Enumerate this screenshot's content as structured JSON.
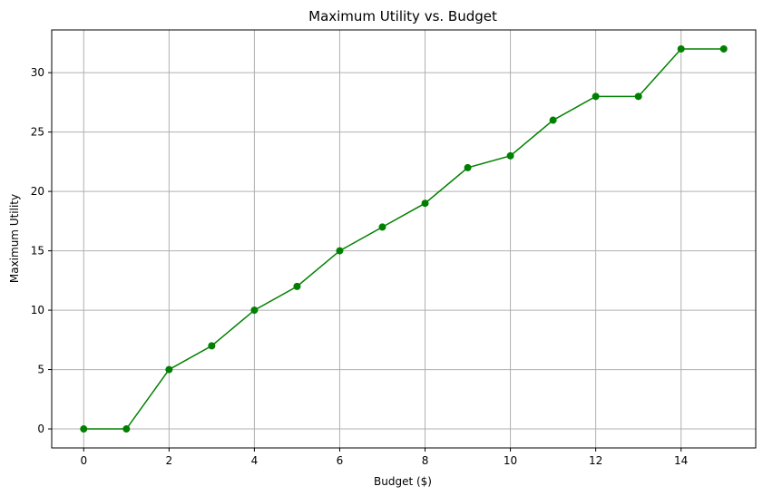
{
  "chart_data": {
    "type": "line",
    "title": "Maximum Utility vs. Budget",
    "xlabel": "Budget ($)",
    "ylabel": "Maximum Utility",
    "x": [
      0,
      1,
      2,
      3,
      4,
      5,
      6,
      7,
      8,
      9,
      10,
      11,
      12,
      13,
      14,
      15
    ],
    "series": [
      {
        "values": [
          0,
          0,
          5,
          7,
          10,
          12,
          15,
          17,
          19,
          22,
          23,
          26,
          28,
          28,
          32,
          32
        ],
        "color": "#008000",
        "marker": "circle"
      }
    ],
    "xlim": [
      -0.75,
      15.75
    ],
    "ylim": [
      -1.6,
      33.6
    ],
    "xticks": [
      0,
      2,
      4,
      6,
      8,
      10,
      12,
      14
    ],
    "yticks": [
      0,
      5,
      10,
      15,
      20,
      25,
      30
    ],
    "grid": true,
    "grid_color": "#b0b0b0"
  }
}
